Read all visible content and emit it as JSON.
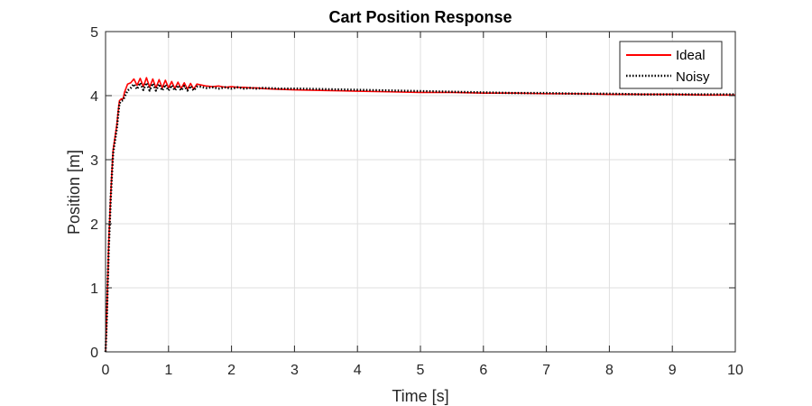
{
  "chart_data": {
    "type": "line",
    "title": "Cart Position Response",
    "xlabel": "Time [s]",
    "ylabel": "Position [m]",
    "xlim": [
      0,
      10
    ],
    "ylim": [
      0,
      5
    ],
    "xticks": [
      0,
      1,
      2,
      3,
      4,
      5,
      6,
      7,
      8,
      9,
      10
    ],
    "yticks": [
      0,
      1,
      2,
      3,
      4,
      5
    ],
    "xtick_labels": [
      "0",
      "1",
      "2",
      "3",
      "4",
      "5",
      "6",
      "7",
      "8",
      "9",
      "10"
    ],
    "ytick_labels": [
      "0",
      "1",
      "2",
      "3",
      "4",
      "5"
    ],
    "grid": true,
    "legend_position": "top-right",
    "series": [
      {
        "name": "Ideal",
        "color": "#ff0000",
        "line_style": "solid",
        "x": [
          0,
          0.02,
          0.05,
          0.08,
          0.1,
          0.12,
          0.15,
          0.18,
          0.2,
          0.22,
          0.25,
          0.28,
          0.3,
          0.35,
          0.4,
          0.45,
          0.5,
          0.55,
          0.6,
          0.65,
          0.7,
          0.75,
          0.8,
          0.85,
          0.9,
          0.95,
          1.0,
          1.05,
          1.1,
          1.15,
          1.2,
          1.25,
          1.3,
          1.35,
          1.4,
          1.45,
          1.5,
          1.6,
          1.7,
          1.8,
          1.9,
          2.0,
          2.1,
          2.2,
          2.3,
          2.4,
          2.5,
          2.75,
          3.0,
          3.5,
          4.0,
          4.5,
          5.0,
          5.5,
          6.0,
          6.5,
          7.0,
          7.5,
          8.0,
          8.5,
          9.0,
          9.5,
          10.0
        ],
        "values": [
          0,
          0.6,
          1.7,
          2.4,
          2.8,
          3.15,
          3.35,
          3.55,
          3.75,
          3.92,
          3.95,
          3.95,
          4.05,
          4.18,
          4.2,
          4.26,
          4.16,
          4.27,
          4.14,
          4.28,
          4.13,
          4.26,
          4.12,
          4.25,
          4.12,
          4.24,
          4.12,
          4.22,
          4.11,
          4.21,
          4.11,
          4.2,
          4.1,
          4.19,
          4.1,
          4.18,
          4.17,
          4.15,
          4.14,
          4.15,
          4.13,
          4.14,
          4.13,
          4.13,
          4.12,
          4.12,
          4.11,
          4.1,
          4.09,
          4.08,
          4.07,
          4.06,
          4.05,
          4.05,
          4.04,
          4.04,
          4.03,
          4.03,
          4.02,
          4.02,
          4.02,
          4.01,
          4.01
        ]
      },
      {
        "name": "Noisy",
        "color": "#000000",
        "line_style": "dotted",
        "x": [
          0,
          0.02,
          0.05,
          0.08,
          0.1,
          0.12,
          0.15,
          0.18,
          0.2,
          0.22,
          0.25,
          0.28,
          0.3,
          0.35,
          0.4,
          0.45,
          0.5,
          0.55,
          0.6,
          0.65,
          0.7,
          0.75,
          0.8,
          0.85,
          0.9,
          0.95,
          1.0,
          1.05,
          1.1,
          1.15,
          1.2,
          1.25,
          1.3,
          1.35,
          1.4,
          1.45,
          1.5,
          1.6,
          1.7,
          1.8,
          1.9,
          2.0,
          2.1,
          2.2,
          2.3,
          2.4,
          2.5,
          2.75,
          3.0,
          3.5,
          4.0,
          4.5,
          5.0,
          5.5,
          6.0,
          6.5,
          7.0,
          7.5,
          8.0,
          8.5,
          9.0,
          9.5,
          10.0
        ],
        "values": [
          0,
          0.55,
          1.6,
          2.35,
          2.75,
          3.1,
          3.3,
          3.5,
          3.7,
          3.88,
          3.92,
          3.93,
          3.98,
          4.08,
          4.12,
          4.18,
          4.1,
          4.2,
          4.09,
          4.2,
          4.08,
          4.19,
          4.08,
          4.18,
          4.08,
          4.17,
          4.08,
          4.16,
          4.08,
          4.16,
          4.08,
          4.15,
          4.08,
          4.15,
          4.08,
          4.14,
          4.14,
          4.12,
          4.13,
          4.11,
          4.13,
          4.11,
          4.13,
          4.11,
          4.12,
          4.11,
          4.12,
          4.11,
          4.11,
          4.1,
          4.09,
          4.08,
          4.07,
          4.06,
          4.05,
          4.04,
          4.04,
          4.03,
          4.03,
          4.02,
          4.02,
          4.02,
          4.02
        ]
      }
    ]
  }
}
